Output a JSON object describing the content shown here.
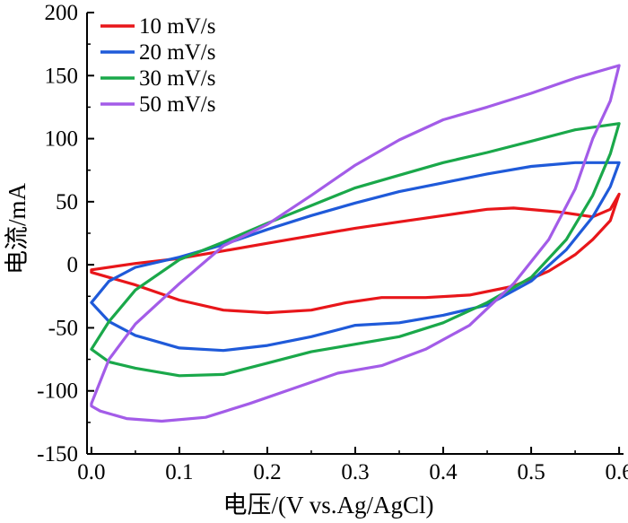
{
  "chart_data": {
    "type": "line",
    "title": "",
    "xlabel": "电压/(V vs.Ag/AgCl)",
    "ylabel": "电流/mA",
    "xlim": [
      -0.005,
      0.605
    ],
    "ylim": [
      -150,
      200
    ],
    "xticks": [
      0.0,
      0.1,
      0.2,
      0.3,
      0.4,
      0.5,
      0.6
    ],
    "xtick_labels": [
      "0.0",
      "0.1",
      "0.2",
      "0.3",
      "0.4",
      "0.5",
      "0.6"
    ],
    "yticks": [
      -150,
      -100,
      -50,
      0,
      50,
      100,
      150,
      200
    ],
    "ytick_labels": [
      "-150",
      "-100",
      "-50",
      "0",
      "50",
      "100",
      "150",
      "200"
    ],
    "grid": false,
    "legend_position": "top-left",
    "series": [
      {
        "name": "10 mV/s",
        "color": "#e8161a",
        "points": [
          [
            0.0,
            -4
          ],
          [
            0.05,
            1
          ],
          [
            0.1,
            5
          ],
          [
            0.15,
            11
          ],
          [
            0.2,
            17
          ],
          [
            0.25,
            23
          ],
          [
            0.3,
            29
          ],
          [
            0.35,
            34
          ],
          [
            0.4,
            39
          ],
          [
            0.45,
            44
          ],
          [
            0.48,
            45
          ],
          [
            0.53,
            42
          ],
          [
            0.57,
            38
          ],
          [
            0.59,
            44
          ],
          [
            0.6,
            56
          ],
          [
            0.59,
            35
          ],
          [
            0.57,
            20
          ],
          [
            0.55,
            8
          ],
          [
            0.52,
            -5
          ],
          [
            0.48,
            -17
          ],
          [
            0.43,
            -24
          ],
          [
            0.38,
            -26
          ],
          [
            0.33,
            -26
          ],
          [
            0.29,
            -30
          ],
          [
            0.25,
            -36
          ],
          [
            0.2,
            -38
          ],
          [
            0.15,
            -36
          ],
          [
            0.1,
            -28
          ],
          [
            0.05,
            -16
          ],
          [
            0.0,
            -6
          ]
        ]
      },
      {
        "name": "20 mV/s",
        "color": "#1f5ad9",
        "points": [
          [
            0.0,
            -30
          ],
          [
            0.02,
            -13
          ],
          [
            0.05,
            -2
          ],
          [
            0.1,
            6
          ],
          [
            0.15,
            16
          ],
          [
            0.2,
            28
          ],
          [
            0.25,
            39
          ],
          [
            0.3,
            49
          ],
          [
            0.35,
            58
          ],
          [
            0.4,
            65
          ],
          [
            0.45,
            72
          ],
          [
            0.5,
            78
          ],
          [
            0.55,
            81
          ],
          [
            0.6,
            81
          ],
          [
            0.59,
            62
          ],
          [
            0.57,
            38
          ],
          [
            0.54,
            12
          ],
          [
            0.5,
            -13
          ],
          [
            0.45,
            -32
          ],
          [
            0.4,
            -40
          ],
          [
            0.35,
            -46
          ],
          [
            0.3,
            -48
          ],
          [
            0.25,
            -57
          ],
          [
            0.2,
            -64
          ],
          [
            0.15,
            -68
          ],
          [
            0.1,
            -66
          ],
          [
            0.05,
            -56
          ],
          [
            0.02,
            -45
          ],
          [
            0.0,
            -30
          ]
        ]
      },
      {
        "name": "30 mV/s",
        "color": "#1aa84a",
        "points": [
          [
            0.0,
            -67
          ],
          [
            0.02,
            -45
          ],
          [
            0.05,
            -20
          ],
          [
            0.1,
            4
          ],
          [
            0.15,
            18
          ],
          [
            0.2,
            33
          ],
          [
            0.25,
            47
          ],
          [
            0.3,
            61
          ],
          [
            0.35,
            71
          ],
          [
            0.4,
            81
          ],
          [
            0.45,
            89
          ],
          [
            0.5,
            98
          ],
          [
            0.55,
            107
          ],
          [
            0.6,
            112
          ],
          [
            0.6,
            112
          ],
          [
            0.59,
            88
          ],
          [
            0.57,
            55
          ],
          [
            0.54,
            20
          ],
          [
            0.5,
            -10
          ],
          [
            0.45,
            -30
          ],
          [
            0.4,
            -46
          ],
          [
            0.35,
            -57
          ],
          [
            0.3,
            -63
          ],
          [
            0.25,
            -69
          ],
          [
            0.2,
            -78
          ],
          [
            0.15,
            -87
          ],
          [
            0.1,
            -88
          ],
          [
            0.05,
            -82
          ],
          [
            0.02,
            -77
          ],
          [
            0.0,
            -67
          ]
        ]
      },
      {
        "name": "50 mV/s",
        "color": "#a35ce8",
        "points": [
          [
            0.0,
            -110
          ],
          [
            0.02,
            -75
          ],
          [
            0.05,
            -47
          ],
          [
            0.1,
            -15
          ],
          [
            0.15,
            15
          ],
          [
            0.2,
            32
          ],
          [
            0.25,
            55
          ],
          [
            0.3,
            79
          ],
          [
            0.35,
            99
          ],
          [
            0.4,
            115
          ],
          [
            0.45,
            125
          ],
          [
            0.5,
            136
          ],
          [
            0.55,
            148
          ],
          [
            0.6,
            158
          ],
          [
            0.59,
            130
          ],
          [
            0.57,
            100
          ],
          [
            0.55,
            60
          ],
          [
            0.52,
            20
          ],
          [
            0.48,
            -15
          ],
          [
            0.43,
            -48
          ],
          [
            0.38,
            -67
          ],
          [
            0.33,
            -80
          ],
          [
            0.28,
            -86
          ],
          [
            0.23,
            -98
          ],
          [
            0.18,
            -110
          ],
          [
            0.13,
            -121
          ],
          [
            0.08,
            -124
          ],
          [
            0.04,
            -122
          ],
          [
            0.01,
            -116
          ],
          [
            0.0,
            -112
          ]
        ]
      }
    ]
  }
}
